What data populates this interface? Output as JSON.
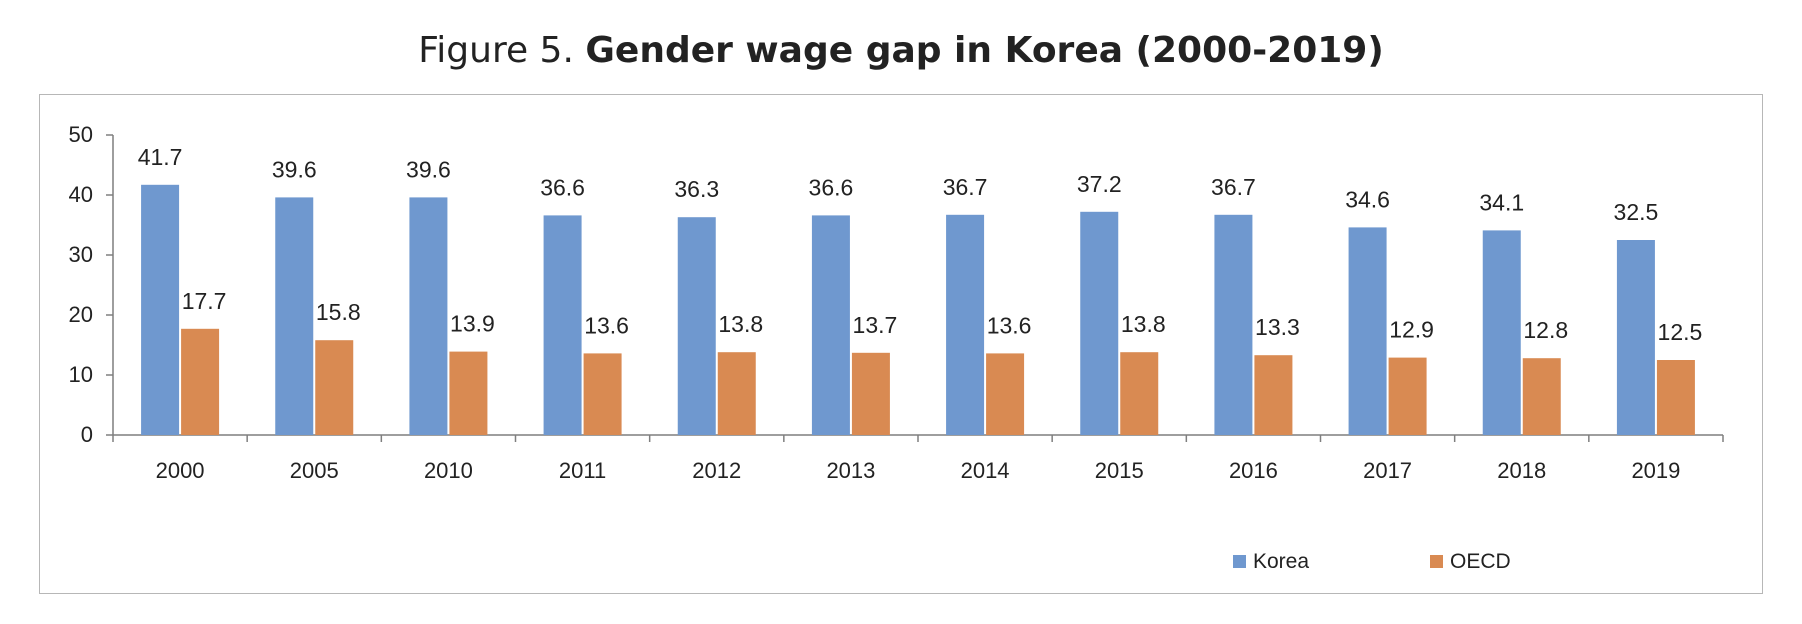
{
  "title": {
    "prefix": "Figure 5.",
    "main": "Gender wage gap in Korea (2000-2019)"
  },
  "chart_data": {
    "type": "bar",
    "categories": [
      "2000",
      "2005",
      "2010",
      "2011",
      "2012",
      "2013",
      "2014",
      "2015",
      "2016",
      "2017",
      "2018",
      "2019"
    ],
    "series": [
      {
        "name": "Korea",
        "color": "#6f98cf",
        "values": [
          41.7,
          39.6,
          39.6,
          36.6,
          36.3,
          36.6,
          36.7,
          37.2,
          36.7,
          34.6,
          34.1,
          32.5
        ]
      },
      {
        "name": "OECD",
        "color": "#d98a52",
        "values": [
          17.7,
          15.8,
          13.9,
          13.6,
          13.8,
          13.7,
          13.6,
          13.8,
          13.3,
          12.9,
          12.8,
          12.5
        ]
      }
    ],
    "ylim": [
      0,
      50
    ],
    "yticks": [
      0,
      10,
      20,
      30,
      40,
      50
    ],
    "xlabel": "",
    "ylabel": "",
    "grid": false,
    "legend": "bottom-right",
    "data_labels": true
  }
}
